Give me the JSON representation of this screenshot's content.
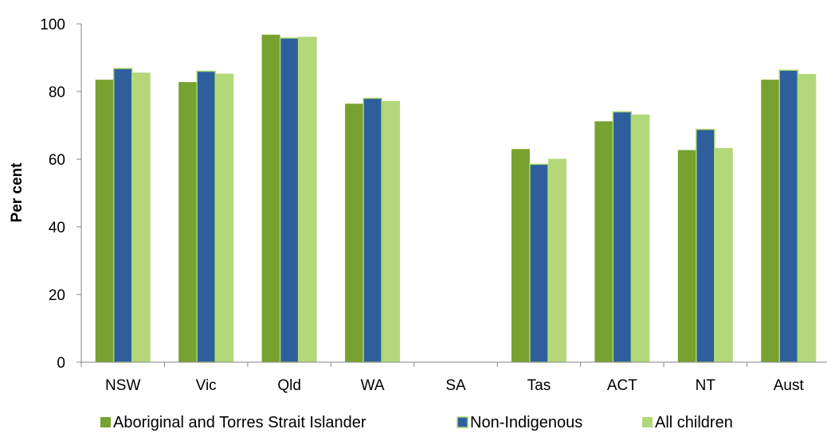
{
  "chart_data": {
    "type": "bar",
    "title": "",
    "xlabel": "",
    "ylabel": "Per cent",
    "ylim": [
      0,
      100
    ],
    "yticks": [
      "0",
      "20",
      "40",
      "60",
      "80",
      "100"
    ],
    "grid": false,
    "legend_position": "bottom",
    "categories": [
      "NSW",
      "Vic",
      "Qld",
      "WA",
      "SA",
      "Tas",
      "ACT",
      "NT",
      "Aust"
    ],
    "series": [
      {
        "name": "Aboriginal and Torres Strait Islander",
        "color": "#77a22f",
        "values": [
          83.5,
          82.8,
          96.8,
          76.4,
          null,
          63.0,
          71.2,
          62.7,
          83.5
        ]
      },
      {
        "name": "Non-Indigenous",
        "color": "#2e5e9c",
        "edge": "#a9d86e",
        "values": [
          86.8,
          86.0,
          95.8,
          78.0,
          null,
          58.5,
          74.0,
          68.8,
          86.3
        ]
      },
      {
        "name": "All children",
        "color": "#b3d87a",
        "values": [
          85.6,
          85.3,
          96.2,
          77.2,
          null,
          60.1,
          73.2,
          63.3,
          85.2
        ]
      }
    ]
  }
}
